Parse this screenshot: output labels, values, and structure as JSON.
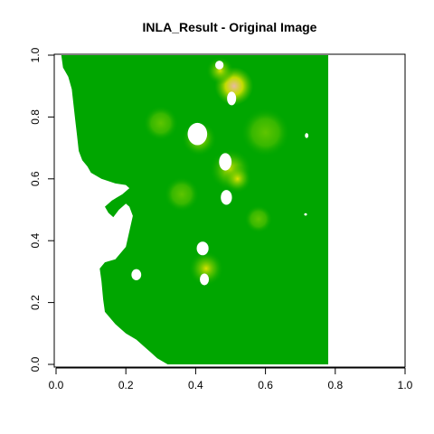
{
  "chart_data": {
    "type": "heatmap",
    "title": "INLA_Result  - Original Image",
    "xlabel": "",
    "ylabel": "",
    "xlim": [
      0,
      1
    ],
    "ylim": [
      0,
      1
    ],
    "x_ticks": [
      "0.0",
      "0.2",
      "0.4",
      "0.6",
      "0.8",
      "1.0"
    ],
    "y_ticks": [
      "0.0",
      "0.2",
      "0.4",
      "0.6",
      "0.8",
      "1.0"
    ],
    "grid": false,
    "legend": "none",
    "colors": {
      "base": "#00a600",
      "mid": "#63c600",
      "high": "#e6e600",
      "peak": "#e8b9a4",
      "missing": "#ffffff"
    },
    "raster_extent": {
      "x": [
        0.0,
        0.78
      ],
      "y": [
        0.0,
        1.0
      ]
    },
    "no_data_region": [
      [
        0.0,
        1.0
      ],
      [
        0.015,
        1.0
      ],
      [
        0.02,
        0.96
      ],
      [
        0.035,
        0.93
      ],
      [
        0.045,
        0.89
      ],
      [
        0.05,
        0.84
      ],
      [
        0.055,
        0.79
      ],
      [
        0.06,
        0.74
      ],
      [
        0.065,
        0.69
      ],
      [
        0.075,
        0.66
      ],
      [
        0.09,
        0.64
      ],
      [
        0.1,
        0.62
      ],
      [
        0.13,
        0.6
      ],
      [
        0.17,
        0.585
      ],
      [
        0.2,
        0.58
      ],
      [
        0.21,
        0.57
      ],
      [
        0.19,
        0.55
      ],
      [
        0.16,
        0.53
      ],
      [
        0.14,
        0.51
      ],
      [
        0.15,
        0.49
      ],
      [
        0.17,
        0.47
      ],
      [
        0.19,
        0.43
      ],
      [
        0.2,
        0.4
      ],
      [
        0.19,
        0.37
      ],
      [
        0.17,
        0.36
      ],
      [
        0.15,
        0.37
      ],
      [
        0.14,
        0.4
      ],
      [
        0.13,
        0.43
      ],
      [
        0.16,
        0.47
      ],
      [
        0.18,
        0.5
      ],
      [
        0.2,
        0.52
      ],
      [
        0.21,
        0.51
      ],
      [
        0.22,
        0.48
      ],
      [
        0.2,
        0.38
      ],
      [
        0.17,
        0.34
      ],
      [
        0.14,
        0.33
      ],
      [
        0.125,
        0.31
      ],
      [
        0.13,
        0.27
      ],
      [
        0.135,
        0.21
      ],
      [
        0.14,
        0.17
      ],
      [
        0.17,
        0.13
      ],
      [
        0.2,
        0.1
      ],
      [
        0.23,
        0.08
      ],
      [
        0.25,
        0.06
      ],
      [
        0.27,
        0.04
      ],
      [
        0.29,
        0.02
      ],
      [
        0.32,
        0.0
      ],
      [
        0.0,
        0.0
      ]
    ],
    "no_data_holes": [
      {
        "x": 0.405,
        "y": 0.745,
        "rx": 0.028,
        "ry": 0.036
      },
      {
        "x": 0.485,
        "y": 0.655,
        "rx": 0.018,
        "ry": 0.028
      },
      {
        "x": 0.488,
        "y": 0.54,
        "rx": 0.016,
        "ry": 0.024
      },
      {
        "x": 0.503,
        "y": 0.86,
        "rx": 0.013,
        "ry": 0.022
      },
      {
        "x": 0.42,
        "y": 0.375,
        "rx": 0.017,
        "ry": 0.022
      },
      {
        "x": 0.425,
        "y": 0.275,
        "rx": 0.013,
        "ry": 0.019
      },
      {
        "x": 0.23,
        "y": 0.29,
        "rx": 0.014,
        "ry": 0.018
      },
      {
        "x": 0.468,
        "y": 0.968,
        "rx": 0.012,
        "ry": 0.014
      },
      {
        "x": 0.718,
        "y": 0.74,
        "rx": 0.005,
        "ry": 0.008
      },
      {
        "x": 0.715,
        "y": 0.485,
        "rx": 0.004,
        "ry": 0.004
      }
    ],
    "hotspots": [
      {
        "x": 0.51,
        "y": 0.9,
        "r": 0.055,
        "level": "peak"
      },
      {
        "x": 0.5,
        "y": 0.63,
        "r": 0.06,
        "level": "high"
      },
      {
        "x": 0.41,
        "y": 0.73,
        "r": 0.05,
        "level": "high"
      },
      {
        "x": 0.43,
        "y": 0.31,
        "r": 0.05,
        "level": "high"
      },
      {
        "x": 0.52,
        "y": 0.6,
        "r": 0.04,
        "level": "high"
      },
      {
        "x": 0.58,
        "y": 0.47,
        "r": 0.04,
        "level": "mid"
      },
      {
        "x": 0.36,
        "y": 0.55,
        "r": 0.05,
        "level": "mid"
      },
      {
        "x": 0.3,
        "y": 0.78,
        "r": 0.05,
        "level": "mid"
      },
      {
        "x": 0.47,
        "y": 0.95,
        "r": 0.04,
        "level": "high"
      },
      {
        "x": 0.6,
        "y": 0.75,
        "r": 0.07,
        "level": "mid"
      }
    ]
  }
}
